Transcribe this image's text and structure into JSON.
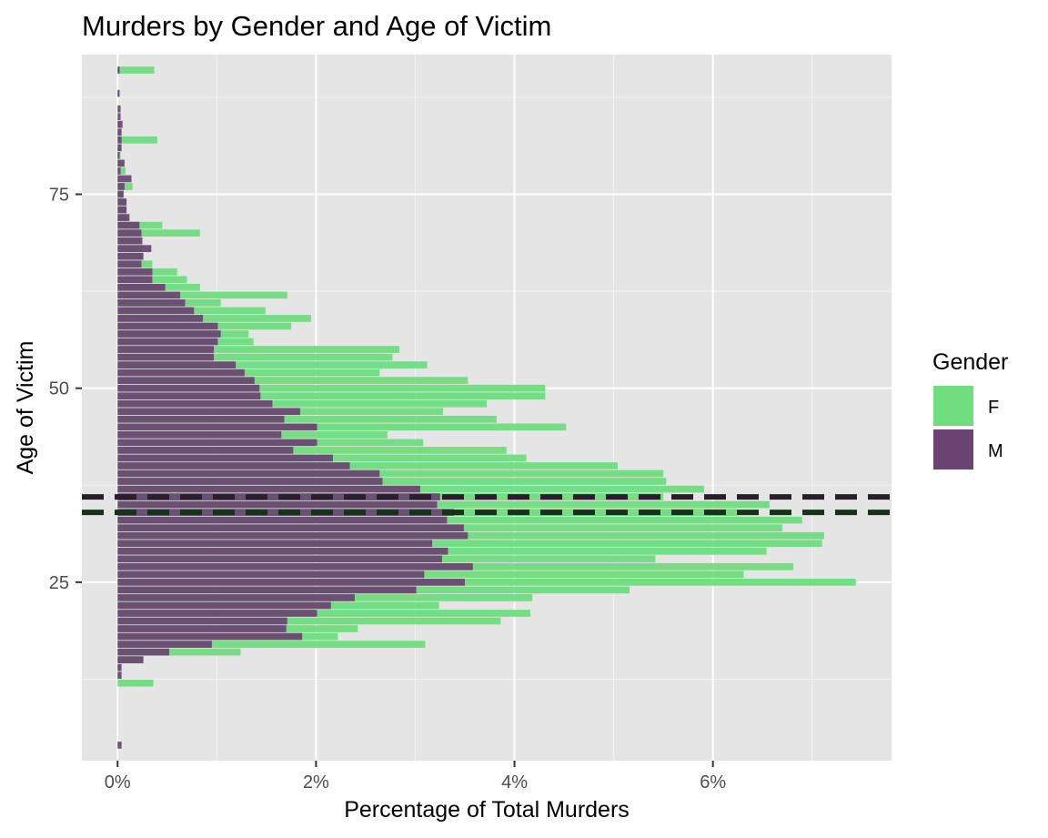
{
  "chart_data": {
    "type": "bar",
    "orientation": "horizontal",
    "title": "Murders by Gender and Age of Victim",
    "xlabel": "Percentage of Total Murders",
    "ylabel": "Age of Victim",
    "xlim": [
      -0.36,
      7.8
    ],
    "ylim": [
      2,
      93
    ],
    "xticks": [
      0,
      2,
      4,
      6
    ],
    "xtick_labels": [
      "0%",
      "2%",
      "4%",
      "6%"
    ],
    "yticks": [
      25,
      50,
      75
    ],
    "ytick_labels": [
      "25",
      "50",
      "75"
    ],
    "grid": true,
    "legend": {
      "title": "Gender",
      "position": "right",
      "entries": [
        "F",
        "M"
      ]
    },
    "colors": {
      "F": "#6fdc7e",
      "M": "#6a4372",
      "panel": "#e5e5e5",
      "grid": "#ffffff",
      "vline_M": "#2b1d2e",
      "vline_F": "#163319"
    },
    "reference_lines": [
      {
        "series": "M",
        "age": 36,
        "style": "dashed"
      },
      {
        "series": "F",
        "age": 34,
        "style": "dashed"
      }
    ],
    "series": [
      {
        "name": "F",
        "ages": [
          4,
          12,
          13,
          14,
          15,
          16,
          17,
          18,
          19,
          20,
          21,
          22,
          23,
          24,
          25,
          26,
          27,
          28,
          29,
          30,
          31,
          32,
          33,
          34,
          35,
          36,
          37,
          38,
          39,
          40,
          41,
          42,
          43,
          44,
          45,
          46,
          47,
          48,
          49,
          50,
          51,
          52,
          53,
          54,
          55,
          56,
          57,
          58,
          59,
          60,
          61,
          62,
          63,
          64,
          65,
          66,
          67,
          68,
          69,
          70,
          71,
          72,
          73,
          74,
          75,
          76,
          77,
          78,
          79,
          80,
          81,
          82,
          83,
          84,
          85,
          86,
          88,
          91
        ],
        "values": [
          0,
          0.36,
          0.02,
          0.02,
          0.25,
          1.24,
          3.1,
          2.22,
          2.42,
          3.86,
          4.16,
          3.24,
          4.18,
          5.16,
          7.44,
          6.31,
          6.81,
          5.42,
          6.54,
          7.1,
          7.12,
          6.7,
          6.9,
          6.24,
          6.57,
          5.5,
          5.91,
          5.53,
          5.5,
          5.04,
          4.12,
          3.92,
          3.08,
          2.72,
          4.52,
          3.82,
          3.28,
          3.72,
          4.31,
          4.31,
          3.53,
          2.64,
          3.12,
          2.77,
          2.84,
          1.37,
          1.32,
          1.75,
          1.95,
          1.49,
          1.04,
          1.71,
          0.83,
          0.7,
          0.6,
          0.35,
          0.25,
          0.25,
          0.23,
          0.83,
          0.45,
          0.09,
          0.09,
          0.09,
          0.06,
          0.15,
          0.02,
          0.08,
          0.04,
          0.03,
          0.03,
          0.4,
          0.02,
          0.02,
          0,
          0,
          0.02,
          0.37
        ]
      },
      {
        "name": "M",
        "ages": [
          4,
          12,
          13,
          14,
          15,
          16,
          17,
          18,
          19,
          20,
          21,
          22,
          23,
          24,
          25,
          26,
          27,
          28,
          29,
          30,
          31,
          32,
          33,
          34,
          35,
          36,
          37,
          38,
          39,
          40,
          41,
          42,
          43,
          44,
          45,
          46,
          47,
          48,
          49,
          50,
          51,
          52,
          53,
          54,
          55,
          56,
          57,
          58,
          59,
          60,
          61,
          62,
          63,
          64,
          65,
          66,
          67,
          68,
          69,
          70,
          71,
          72,
          73,
          74,
          75,
          76,
          77,
          78,
          79,
          80,
          81,
          82,
          83,
          84,
          85,
          86,
          88,
          91
        ],
        "values": [
          0.04,
          0,
          0.04,
          0.04,
          0.26,
          0.52,
          0.95,
          1.86,
          1.7,
          1.71,
          2.01,
          2.15,
          2.39,
          3.01,
          3.5,
          3.09,
          3.58,
          3.27,
          3.33,
          3.17,
          3.53,
          3.49,
          3.32,
          3.39,
          3.22,
          3.25,
          3.05,
          2.67,
          2.64,
          2.34,
          2.17,
          1.77,
          2.01,
          1.65,
          2.01,
          1.68,
          1.84,
          1.56,
          1.44,
          1.43,
          1.38,
          1.28,
          1.19,
          0.97,
          0.97,
          1.01,
          1.04,
          1.01,
          0.86,
          0.77,
          0.68,
          0.63,
          0.48,
          0.35,
          0.35,
          0.24,
          0.26,
          0.34,
          0.25,
          0.24,
          0.22,
          0.12,
          0.09,
          0.09,
          0.06,
          0.07,
          0.14,
          0.03,
          0.07,
          0.02,
          0.04,
          0.04,
          0.04,
          0.05,
          0.03,
          0.03,
          0.02,
          0.02
        ]
      }
    ]
  }
}
